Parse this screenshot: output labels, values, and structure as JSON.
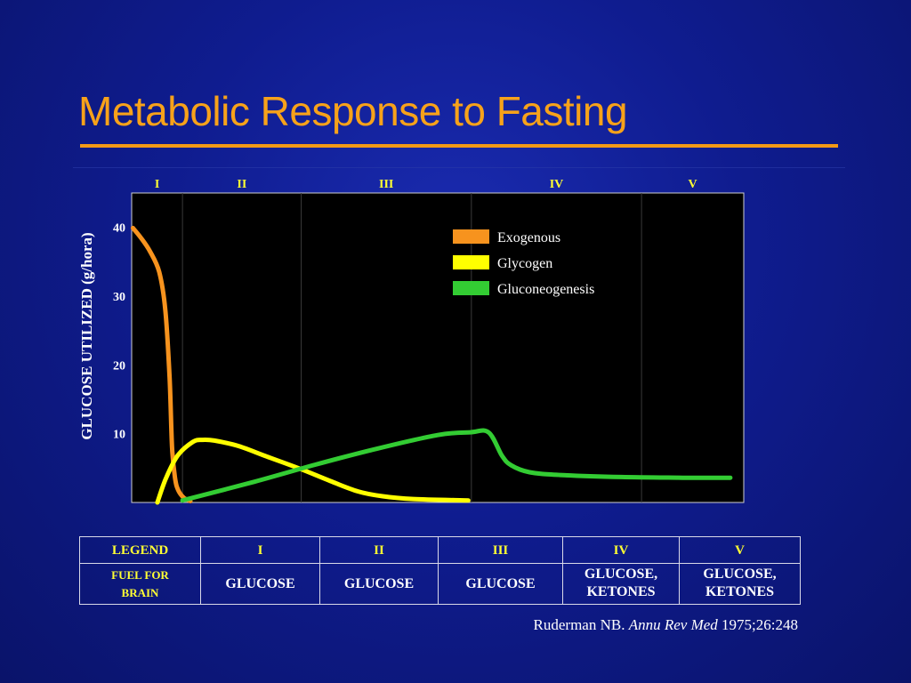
{
  "title": "Metabolic Response to Fasting",
  "chart_data": {
    "type": "line",
    "ylabel": "GLUCOSE UTILIZED  (g/hora)",
    "yticks": [
      40,
      30,
      20,
      10
    ],
    "ylim": [
      0,
      45
    ],
    "xlim": [
      0,
      100
    ],
    "phases": [
      {
        "label": "I",
        "start": 0,
        "end": 8.3
      },
      {
        "label": "II",
        "start": 8.3,
        "end": 27.7
      },
      {
        "label": "III",
        "start": 27.7,
        "end": 55.5
      },
      {
        "label": "IV",
        "start": 55.5,
        "end": 83.3
      },
      {
        "label": "V",
        "start": 83.3,
        "end": 100
      }
    ],
    "series": [
      {
        "name": "Exogenous",
        "color": "#f7931e",
        "x": [
          0.2,
          1.5,
          3,
          4.5,
          5.5,
          6.2,
          6.6,
          7.1,
          7.6,
          8.5,
          9.6
        ],
        "y": [
          39.9,
          38.5,
          36.5,
          33.5,
          28,
          18,
          8,
          3.5,
          1.8,
          0.7,
          0.2
        ]
      },
      {
        "name": "Glycogen",
        "color": "#ffff00",
        "x": [
          4.2,
          5.6,
          7.5,
          10,
          11.5,
          13.5,
          17.5,
          22,
          27.5,
          32.5,
          37,
          41,
          46,
          55
        ],
        "y": [
          0,
          3.5,
          6.8,
          8.8,
          9.1,
          9,
          8.2,
          6.7,
          4.9,
          3.1,
          1.6,
          0.9,
          0.5,
          0.3
        ]
      },
      {
        "name": "Gluconeogenesis",
        "color": "#33cc33",
        "x": [
          8.3,
          20,
          30,
          40,
          50,
          55.3,
          58.3,
          60.5,
          62,
          65,
          70,
          80,
          90,
          97.8
        ],
        "y": [
          0.3,
          3,
          5.5,
          7.8,
          9.8,
          10.2,
          10.2,
          6.8,
          5.4,
          4.4,
          4,
          3.7,
          3.6,
          3.6
        ]
      }
    ]
  },
  "legend_items": [
    "Exogenous",
    "Glycogen",
    "Gluconeogenesis"
  ],
  "fuel_table": {
    "headers": [
      "LEGEND",
      "I",
      "II",
      "III",
      "IV",
      "V"
    ],
    "row_label": "FUEL FOR BRAIN",
    "row_label_line1": "FUEL FOR",
    "row_label_line2": "BRAIN",
    "cells": [
      "GLUCOSE",
      "GLUCOSE",
      "GLUCOSE",
      "GLUCOSE, KETONES",
      "GLUCOSE, KETONES"
    ],
    "cell4_line1": "GLUCOSE,",
    "cell4_line2": "KETONES",
    "cell5_line1": "GLUCOSE,",
    "cell5_line2": "KETONES"
  },
  "citation": {
    "author": "Ruderman NB.",
    "journal": "Annu Rev Med",
    "ref": "1975;26:248"
  },
  "colors": {
    "background": "#10208f",
    "title": "#f7a21a",
    "phase_labels": "#ffff33",
    "plot_background": "#000000"
  }
}
